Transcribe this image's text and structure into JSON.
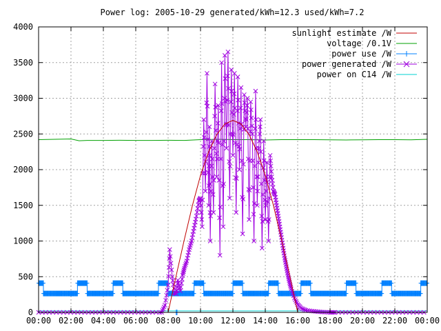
{
  "chart_data": {
    "type": "line",
    "title": "Power log: 2005-10-29 generated/kWh=12.3 used/kWh=7.2",
    "xlabel": "",
    "ylabel": "",
    "xlim": [
      0,
      24
    ],
    "ylim": [
      0,
      4000
    ],
    "grid": true,
    "legend_position": "top-right",
    "x_ticks": [
      {
        "value": 0,
        "label": "00:00"
      },
      {
        "value": 2,
        "label": "02:00"
      },
      {
        "value": 4,
        "label": "04:00"
      },
      {
        "value": 6,
        "label": "06:00"
      },
      {
        "value": 8,
        "label": "08:00"
      },
      {
        "value": 10,
        "label": "10:00"
      },
      {
        "value": 12,
        "label": "12:00"
      },
      {
        "value": 14,
        "label": "14:00"
      },
      {
        "value": 16,
        "label": "16:00"
      },
      {
        "value": 18,
        "label": "18:00"
      },
      {
        "value": 20,
        "label": "20:00"
      },
      {
        "value": 22,
        "label": "22:00"
      },
      {
        "value": 24,
        "label": "00:00"
      }
    ],
    "y_ticks": [
      {
        "value": 0,
        "label": "0"
      },
      {
        "value": 500,
        "label": "500"
      },
      {
        "value": 1000,
        "label": "1000"
      },
      {
        "value": 1500,
        "label": "1500"
      },
      {
        "value": 2000,
        "label": "2000"
      },
      {
        "value": 2500,
        "label": "2500"
      },
      {
        "value": 3000,
        "label": "3000"
      },
      {
        "value": 3500,
        "label": "3500"
      },
      {
        "value": 4000,
        "label": "4000"
      }
    ],
    "series": [
      {
        "name": "sunlight estimate /W",
        "color": "#c00000",
        "marker": "none",
        "x": [
          8.0,
          8.5,
          9.0,
          9.5,
          10.0,
          10.5,
          11.0,
          11.5,
          12.0,
          12.5,
          13.0,
          13.5,
          14.0,
          14.5,
          15.0,
          15.5,
          16.0
        ],
        "y": [
          0,
          520,
          1020,
          1500,
          1920,
          2250,
          2490,
          2640,
          2690,
          2640,
          2490,
          2250,
          1920,
          1500,
          1020,
          520,
          0
        ]
      },
      {
        "name": "voltage /0.1V",
        "color": "#00a000",
        "marker": "none",
        "x": [
          0,
          1,
          2,
          2.5,
          3,
          4,
          5,
          6,
          7,
          8,
          9,
          10,
          11,
          12,
          13,
          14,
          15,
          16,
          17,
          18,
          19,
          20,
          21,
          22,
          23,
          24
        ],
        "y": [
          2420,
          2425,
          2430,
          2405,
          2410,
          2410,
          2412,
          2410,
          2410,
          2412,
          2410,
          2420,
          2425,
          2420,
          2420,
          2415,
          2420,
          2420,
          2420,
          2418,
          2415,
          2418,
          2420,
          2420,
          2418,
          2425
        ]
      },
      {
        "name": "power use /W",
        "color": "#0080ff",
        "marker": "plus",
        "segments": [
          {
            "x0": 0.0,
            "x1": 0.3,
            "y": 410
          },
          {
            "x0": 0.3,
            "x1": 2.4,
            "y": 265
          },
          {
            "x0": 2.4,
            "x1": 3.0,
            "y": 410
          },
          {
            "x0": 3.0,
            "x1": 4.6,
            "y": 265
          },
          {
            "x0": 4.6,
            "x1": 5.2,
            "y": 410
          },
          {
            "x0": 5.2,
            "x1": 7.4,
            "y": 265
          },
          {
            "x0": 7.4,
            "x1": 8.0,
            "y": 410
          },
          {
            "x0": 8.0,
            "x1": 9.6,
            "y": 265
          },
          {
            "x0": 9.6,
            "x1": 10.2,
            "y": 410
          },
          {
            "x0": 10.2,
            "x1": 12.0,
            "y": 265
          },
          {
            "x0": 12.0,
            "x1": 12.6,
            "y": 410
          },
          {
            "x0": 12.6,
            "x1": 14.2,
            "y": 265
          },
          {
            "x0": 14.2,
            "x1": 14.8,
            "y": 410
          },
          {
            "x0": 14.8,
            "x1": 16.2,
            "y": 265
          },
          {
            "x0": 16.2,
            "x1": 16.8,
            "y": 410
          },
          {
            "x0": 16.8,
            "x1": 19.0,
            "y": 265
          },
          {
            "x0": 19.0,
            "x1": 19.6,
            "y": 410
          },
          {
            "x0": 19.6,
            "x1": 21.2,
            "y": 265
          },
          {
            "x0": 21.2,
            "x1": 21.8,
            "y": 410
          },
          {
            "x0": 21.8,
            "x1": 23.6,
            "y": 265
          },
          {
            "x0": 23.6,
            "x1": 24.0,
            "y": 410
          }
        ],
        "dips": [
          {
            "x": 8.5,
            "y": 0
          },
          {
            "x": 8.55,
            "y": 0
          }
        ]
      },
      {
        "name": "power generated /W",
        "color": "#a000e0",
        "marker": "cross",
        "x": [
          0,
          7.6,
          7.8,
          8.0,
          8.1,
          8.25,
          8.4,
          8.5,
          8.6,
          8.75,
          8.9,
          9.0,
          9.15,
          9.3,
          9.45,
          9.6,
          9.75,
          9.9,
          10.0,
          10.1,
          10.2,
          10.3,
          10.4,
          10.5,
          10.55,
          10.6,
          10.7,
          10.8,
          10.9,
          11.0,
          11.1,
          11.2,
          11.3,
          11.4,
          11.5,
          11.6,
          11.7,
          11.8,
          11.9,
          12.0,
          12.1,
          12.2,
          12.3,
          12.4,
          12.5,
          12.6,
          12.7,
          12.8,
          12.9,
          13.0,
          13.1,
          13.2,
          13.3,
          13.4,
          13.5,
          13.6,
          13.7,
          13.8,
          13.9,
          14.0,
          14.1,
          14.2,
          14.3,
          14.4,
          14.5,
          14.6,
          14.7,
          14.8,
          14.9,
          15.0,
          15.1,
          15.2,
          15.3,
          15.4,
          15.5,
          15.6,
          15.8,
          16.0,
          16.2,
          16.5,
          17.0,
          17.5,
          18.0,
          18.3,
          24.0
        ],
        "y": [
          0,
          0,
          100,
          380,
          880,
          500,
          280,
          260,
          450,
          300,
          520,
          620,
          720,
          880,
          1000,
          1180,
          1350,
          1560,
          1600,
          1200,
          2700,
          1700,
          3350,
          1500,
          2600,
          1000,
          2400,
          1400,
          3200,
          1900,
          2900,
          800,
          3500,
          1200,
          3600,
          2300,
          3650,
          1600,
          3400,
          2200,
          3350,
          1400,
          3300,
          2000,
          3150,
          1100,
          3050,
          2600,
          3000,
          1300,
          2950,
          2500,
          1000,
          3100,
          1500,
          2300,
          2700,
          900,
          2400,
          1300,
          2100,
          1000,
          2200,
          1900,
          1700,
          1650,
          1500,
          1350,
          1200,
          1050,
          900,
          760,
          640,
          520,
          420,
          330,
          200,
          110,
          60,
          30,
          15,
          5,
          0,
          0,
          0
        ]
      },
      {
        "name": "power on C14 /W",
        "color": "#00d0d0",
        "marker": "none",
        "x": [
          0,
          24
        ],
        "y": [
          20,
          20
        ]
      }
    ]
  }
}
